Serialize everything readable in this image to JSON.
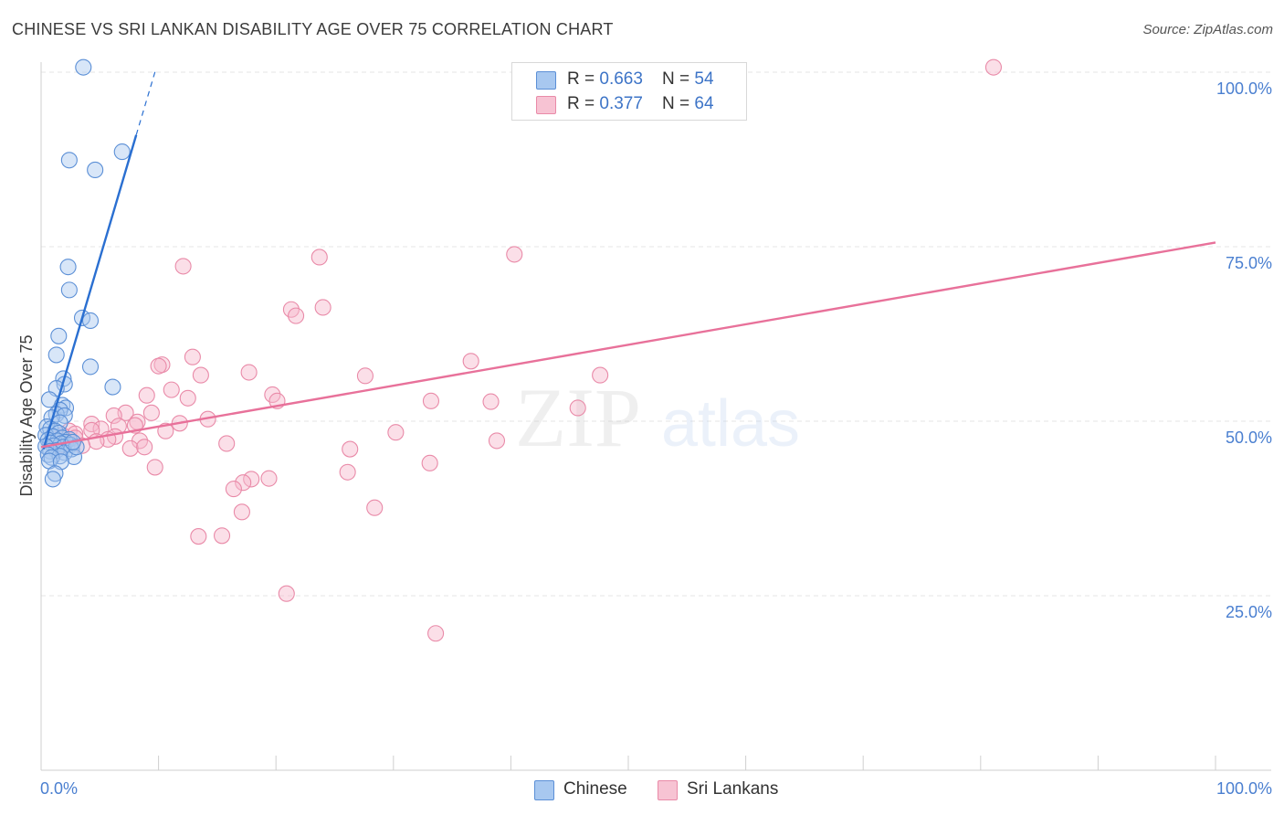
{
  "title": "CHINESE VS SRI LANKAN DISABILITY AGE OVER 75 CORRELATION CHART",
  "source": "Source: ZipAtlas.com",
  "watermark": {
    "zip": "ZIP",
    "atlas": "atlas"
  },
  "colors": {
    "chinese_fill": "#a8c8f0",
    "chinese_stroke": "#5b8fd6",
    "chinese_line": "#2a6fd1",
    "srilankan_fill": "#f7b8cb",
    "srilankan_stroke": "#e98aa8",
    "srilankan_line": "#e8719a",
    "tick_text": "#4a7fd0",
    "grid": "#e6e6e6"
  },
  "legend": {
    "chinese": {
      "r_label": "R = ",
      "r_value": "0.663",
      "n_label": "N = ",
      "n_value": "54"
    },
    "srilankan": {
      "r_label": "R = ",
      "r_value": "0.377",
      "n_label": "N = ",
      "n_value": "64"
    }
  },
  "chart_data": {
    "type": "scatter",
    "title": "CHINESE VS SRI LANKAN DISABILITY AGE OVER 75 CORRELATION CHART",
    "xlabel": "",
    "ylabel": "Disability Age Over 75",
    "xlim": [
      0,
      100
    ],
    "ylim": [
      0,
      100
    ],
    "x_tick_labels": [
      "0.0%",
      "100.0%"
    ],
    "y_ticks": [
      25,
      50,
      75,
      100
    ],
    "y_tick_labels": [
      "25.0%",
      "50.0%",
      "75.0%",
      "100.0%"
    ],
    "grid": true,
    "series": [
      {
        "name": "Chinese",
        "trendline": {
          "x0": 0.2,
          "y0": 46,
          "x1": 8.1,
          "y1": 91,
          "dashed_to_x": 9.8,
          "dashed_to_y": 100.6
        },
        "points": [
          [
            3.6,
            100.7
          ],
          [
            6.9,
            88.6
          ],
          [
            2.4,
            87.4
          ],
          [
            4.6,
            86.0
          ],
          [
            2.3,
            72.1
          ],
          [
            2.4,
            68.8
          ],
          [
            3.5,
            64.8
          ],
          [
            4.2,
            64.4
          ],
          [
            1.5,
            62.2
          ],
          [
            1.3,
            59.5
          ],
          [
            4.2,
            57.8
          ],
          [
            1.9,
            56.1
          ],
          [
            6.1,
            54.9
          ],
          [
            2.0,
            55.3
          ],
          [
            1.3,
            54.7
          ],
          [
            0.7,
            53.1
          ],
          [
            1.8,
            52.3
          ],
          [
            2.1,
            51.9
          ],
          [
            1.6,
            51.6
          ],
          [
            1.3,
            51.0
          ],
          [
            2.0,
            50.8
          ],
          [
            0.9,
            50.5
          ],
          [
            1.6,
            49.8
          ],
          [
            0.5,
            49.2
          ],
          [
            0.8,
            48.9
          ],
          [
            1.2,
            48.6
          ],
          [
            1.5,
            48.3
          ],
          [
            0.4,
            48.0
          ],
          [
            1.0,
            47.8
          ],
          [
            1.8,
            47.6
          ],
          [
            2.4,
            47.4
          ],
          [
            0.6,
            47.3
          ],
          [
            1.4,
            47.2
          ],
          [
            2.1,
            47.0
          ],
          [
            0.8,
            46.9
          ],
          [
            1.7,
            46.8
          ],
          [
            2.5,
            46.6
          ],
          [
            1.1,
            46.5
          ],
          [
            0.4,
            46.4
          ],
          [
            1.9,
            46.3
          ],
          [
            2.6,
            46.0
          ],
          [
            1.3,
            45.8
          ],
          [
            0.8,
            45.7
          ],
          [
            2.0,
            45.5
          ],
          [
            0.6,
            45.2
          ],
          [
            1.6,
            45.0
          ],
          [
            2.8,
            44.9
          ],
          [
            0.9,
            44.8
          ],
          [
            3.0,
            46.3
          ],
          [
            2.7,
            47.0
          ],
          [
            0.7,
            44.3
          ],
          [
            1.7,
            44.2
          ],
          [
            1.2,
            42.5
          ],
          [
            1.0,
            41.7
          ]
        ]
      },
      {
        "name": "Sri Lankans",
        "trendline": {
          "x0": 0,
          "y0": 46.3,
          "x1": 100,
          "y1": 75.6
        },
        "points": [
          [
            81.1,
            100.7
          ],
          [
            40.3,
            73.9
          ],
          [
            23.7,
            73.5
          ],
          [
            12.1,
            72.2
          ],
          [
            21.3,
            66.0
          ],
          [
            21.7,
            65.1
          ],
          [
            24.0,
            66.3
          ],
          [
            12.9,
            59.2
          ],
          [
            36.6,
            58.6
          ],
          [
            10.3,
            58.1
          ],
          [
            10.0,
            57.9
          ],
          [
            17.7,
            57.0
          ],
          [
            13.6,
            56.6
          ],
          [
            27.6,
            56.5
          ],
          [
            47.6,
            56.6
          ],
          [
            11.1,
            54.5
          ],
          [
            9.0,
            53.7
          ],
          [
            12.5,
            53.3
          ],
          [
            19.7,
            53.8
          ],
          [
            20.1,
            52.9
          ],
          [
            33.2,
            52.9
          ],
          [
            38.3,
            52.8
          ],
          [
            45.7,
            51.9
          ],
          [
            9.4,
            51.2
          ],
          [
            7.2,
            51.2
          ],
          [
            6.2,
            50.8
          ],
          [
            14.2,
            50.3
          ],
          [
            8.2,
            49.9
          ],
          [
            11.8,
            49.7
          ],
          [
            4.3,
            49.6
          ],
          [
            8.0,
            49.4
          ],
          [
            6.6,
            49.3
          ],
          [
            5.1,
            48.9
          ],
          [
            4.3,
            48.7
          ],
          [
            2.4,
            48.6
          ],
          [
            10.6,
            48.6
          ],
          [
            2.9,
            48.2
          ],
          [
            1.8,
            48.0
          ],
          [
            30.2,
            48.4
          ],
          [
            6.3,
            47.8
          ],
          [
            2.9,
            47.6
          ],
          [
            5.7,
            47.4
          ],
          [
            4.7,
            47.1
          ],
          [
            8.4,
            47.2
          ],
          [
            3.5,
            46.5
          ],
          [
            1.8,
            46.6
          ],
          [
            15.8,
            46.8
          ],
          [
            38.8,
            47.2
          ],
          [
            26.3,
            46.0
          ],
          [
            7.6,
            46.1
          ],
          [
            9.7,
            43.4
          ],
          [
            33.1,
            44.0
          ],
          [
            26.1,
            42.7
          ],
          [
            17.9,
            41.7
          ],
          [
            19.4,
            41.8
          ],
          [
            17.2,
            41.2
          ],
          [
            16.4,
            40.3
          ],
          [
            28.4,
            37.6
          ],
          [
            17.1,
            37.0
          ],
          [
            15.4,
            33.6
          ],
          [
            13.4,
            33.5
          ],
          [
            20.9,
            25.3
          ],
          [
            33.6,
            19.6
          ],
          [
            8.8,
            46.3
          ]
        ]
      }
    ]
  },
  "bottom_legend": {
    "chinese": "Chinese",
    "srilankan": "Sri Lankans"
  }
}
